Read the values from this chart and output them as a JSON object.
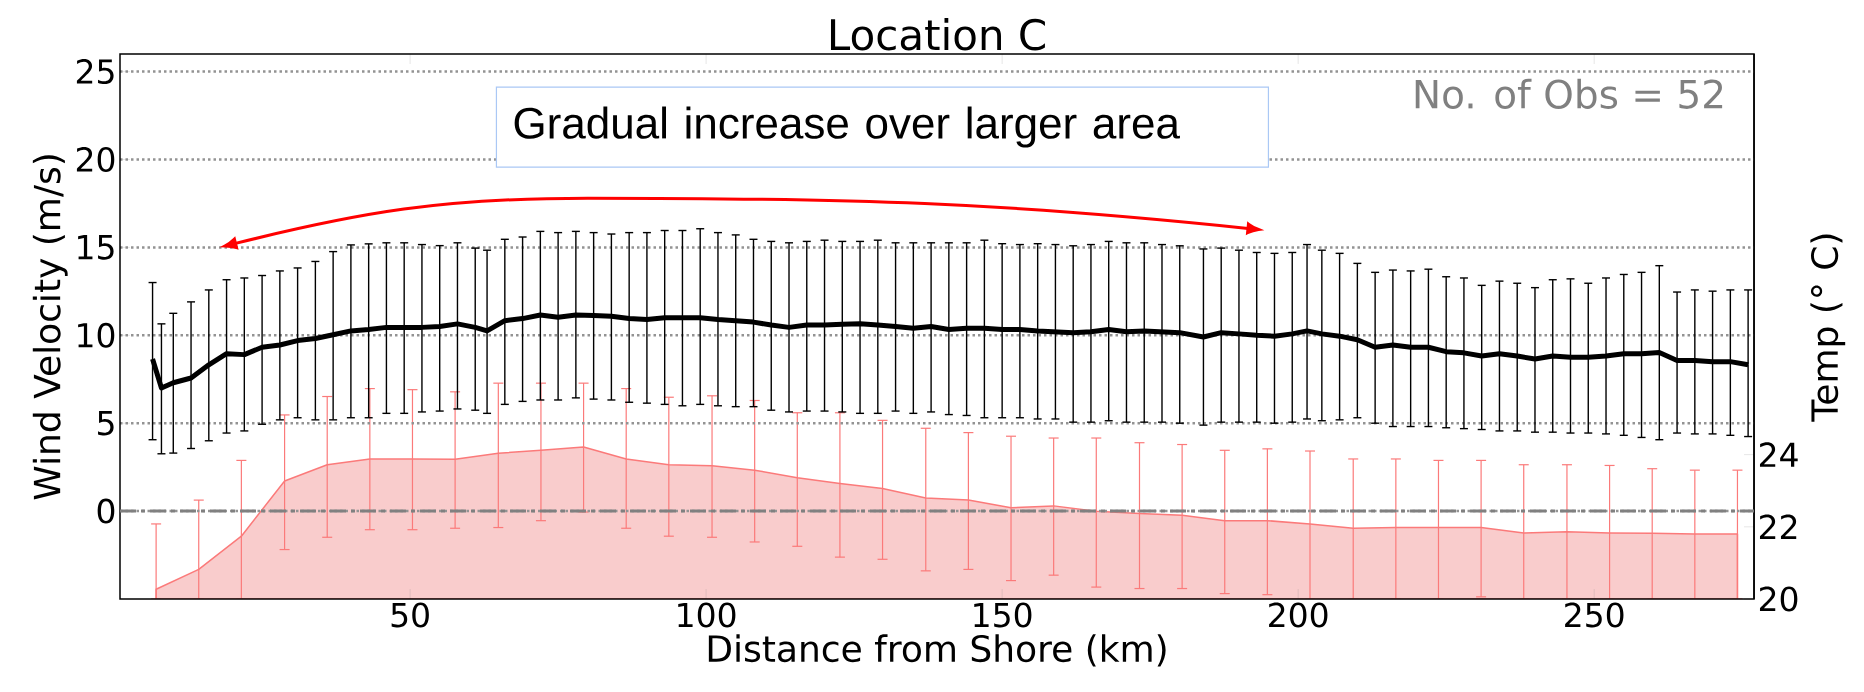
{
  "chart_data": {
    "type": "line",
    "title": "Location C",
    "xlabel": "Distance from Shore (km)",
    "ylabel": "Wind Velocity (m/s)",
    "y2label": "Temp (° C)",
    "xlim": [
      1,
      277
    ],
    "xticks": [
      50,
      100,
      150,
      200,
      250
    ],
    "ylim": [
      -5,
      26
    ],
    "yticks": [
      0,
      5,
      10,
      15,
      20,
      25
    ],
    "y2lim": [
      20,
      35.1
    ],
    "y2ticks": [
      20,
      22,
      24
    ],
    "grid": "y",
    "ref_lines": [
      {
        "axis": "y",
        "value": 0,
        "color": "#808080",
        "line_style": "dashdot"
      }
    ],
    "annotations": [
      "No. of Obs = 52",
      "Gradual increase over larger area"
    ],
    "series": [
      {
        "color": "#000000",
        "x": [
          6.5,
          8,
          10,
          13,
          16,
          19,
          22,
          25,
          28,
          31,
          34,
          37,
          40,
          43,
          46,
          49,
          52,
          55,
          58,
          61,
          63,
          66,
          69,
          72,
          75,
          78,
          81,
          84,
          87,
          90,
          93,
          96,
          99,
          102,
          105,
          108,
          111,
          114,
          117,
          120,
          123,
          126,
          129,
          132,
          135,
          138,
          141,
          144,
          147,
          150,
          153,
          156,
          159,
          162,
          165,
          168,
          171,
          174,
          177,
          180,
          184,
          187,
          190,
          193,
          196,
          199,
          201.5,
          204,
          207,
          210,
          213,
          216,
          219,
          222,
          225,
          228,
          231,
          234,
          237,
          240,
          243,
          246,
          249,
          252,
          255,
          258,
          261,
          264,
          267,
          270,
          273,
          276
        ],
        "values": [
          8.65,
          7.0,
          7.3,
          7.57,
          8.32,
          8.95,
          8.9,
          9.32,
          9.45,
          9.7,
          9.82,
          10.03,
          10.25,
          10.33,
          10.45,
          10.45,
          10.45,
          10.5,
          10.65,
          10.45,
          10.25,
          10.83,
          10.95,
          11.15,
          11.03,
          11.15,
          11.13,
          11.08,
          10.95,
          10.9,
          11.0,
          11.0,
          11.0,
          10.9,
          10.83,
          10.75,
          10.58,
          10.45,
          10.58,
          10.58,
          10.63,
          10.65,
          10.58,
          10.5,
          10.4,
          10.5,
          10.33,
          10.4,
          10.4,
          10.33,
          10.33,
          10.25,
          10.2,
          10.15,
          10.2,
          10.33,
          10.2,
          10.25,
          10.2,
          10.15,
          9.9,
          10.15,
          10.08,
          10.0,
          9.95,
          10.08,
          10.25,
          10.08,
          9.95,
          9.75,
          9.32,
          9.45,
          9.32,
          9.32,
          9.07,
          9.0,
          8.82,
          8.95,
          8.82,
          8.65,
          8.82,
          8.75,
          8.75,
          8.82,
          8.95,
          8.95,
          9.02,
          8.57,
          8.57,
          8.5,
          8.5,
          8.32
        ],
        "errors": [
          [
            4.06,
            13.0
          ],
          [
            3.26,
            10.65
          ],
          [
            3.3,
            11.25
          ],
          [
            3.56,
            11.9
          ],
          [
            4.0,
            12.58
          ],
          [
            4.44,
            13.16
          ],
          [
            4.56,
            13.26
          ],
          [
            4.94,
            13.4
          ],
          [
            5.19,
            13.66
          ],
          [
            5.31,
            13.83
          ],
          [
            5.19,
            14.2
          ],
          [
            5.19,
            14.76
          ],
          [
            5.31,
            15.14
          ],
          [
            5.31,
            15.2
          ],
          [
            5.56,
            15.26
          ],
          [
            5.56,
            15.26
          ],
          [
            5.64,
            15.16
          ],
          [
            5.69,
            15.1
          ],
          [
            5.81,
            15.26
          ],
          [
            5.74,
            14.96
          ],
          [
            5.56,
            14.84
          ],
          [
            6.07,
            15.46
          ],
          [
            6.24,
            15.59
          ],
          [
            6.32,
            15.91
          ],
          [
            6.32,
            15.84
          ],
          [
            6.44,
            15.91
          ],
          [
            6.37,
            15.84
          ],
          [
            6.32,
            15.76
          ],
          [
            6.19,
            15.84
          ],
          [
            6.14,
            15.84
          ],
          [
            6.07,
            15.96
          ],
          [
            5.99,
            15.96
          ],
          [
            6.07,
            16.06
          ],
          [
            5.99,
            15.84
          ],
          [
            5.94,
            15.71
          ],
          [
            5.94,
            15.46
          ],
          [
            5.74,
            15.34
          ],
          [
            5.64,
            15.26
          ],
          [
            5.69,
            15.34
          ],
          [
            5.69,
            15.41
          ],
          [
            5.64,
            15.34
          ],
          [
            5.56,
            15.34
          ],
          [
            5.56,
            15.41
          ],
          [
            5.69,
            15.26
          ],
          [
            5.56,
            15.26
          ],
          [
            5.64,
            15.26
          ],
          [
            5.49,
            15.26
          ],
          [
            5.44,
            15.26
          ],
          [
            5.31,
            15.41
          ],
          [
            5.31,
            15.21
          ],
          [
            5.31,
            15.16
          ],
          [
            5.24,
            15.21
          ],
          [
            5.24,
            15.16
          ],
          [
            5.06,
            15.09
          ],
          [
            5.06,
            15.16
          ],
          [
            5.14,
            15.34
          ],
          [
            5.06,
            15.26
          ],
          [
            5.06,
            15.26
          ],
          [
            5.06,
            15.16
          ],
          [
            5.0,
            15.09
          ],
          [
            4.89,
            14.91
          ],
          [
            5.06,
            14.96
          ],
          [
            5.06,
            14.84
          ],
          [
            5.06,
            14.71
          ],
          [
            5.0,
            14.66
          ],
          [
            5.06,
            14.71
          ],
          [
            5.24,
            15.16
          ],
          [
            5.14,
            14.84
          ],
          [
            5.19,
            14.66
          ],
          [
            5.31,
            14.09
          ],
          [
            5.0,
            13.58
          ],
          [
            4.81,
            13.71
          ],
          [
            4.81,
            13.66
          ],
          [
            4.81,
            13.76
          ],
          [
            4.74,
            13.33
          ],
          [
            4.69,
            13.26
          ],
          [
            4.64,
            12.84
          ],
          [
            4.56,
            13.08
          ],
          [
            4.56,
            12.96
          ],
          [
            4.49,
            12.71
          ],
          [
            4.49,
            13.16
          ],
          [
            4.44,
            13.21
          ],
          [
            4.44,
            12.96
          ],
          [
            4.39,
            13.26
          ],
          [
            4.31,
            13.46
          ],
          [
            4.19,
            13.58
          ],
          [
            4.06,
            13.96
          ],
          [
            4.44,
            12.46
          ],
          [
            4.39,
            12.58
          ],
          [
            4.39,
            12.51
          ],
          [
            4.31,
            12.58
          ],
          [
            4.24,
            12.58
          ]
        ]
      },
      {
        "type": "area",
        "axis": "y2",
        "color": "#f9cccc",
        "x": [
          7.1,
          14.3,
          21.5,
          28.8,
          36.0,
          43.2,
          50.4,
          57.6,
          64.9,
          72.1,
          79.3,
          86.5,
          93.7,
          101.0,
          108.2,
          115.4,
          122.6,
          129.8,
          137.1,
          144.3,
          151.5,
          158.7,
          165.9,
          173.2,
          180.4,
          187.6,
          194.8,
          202.0,
          209.3,
          216.5,
          223.7,
          230.9,
          238.1,
          245.4,
          252.6,
          259.8,
          267.0,
          274.2
        ],
        "values": [
          20.27,
          20.82,
          21.74,
          23.27,
          23.72,
          23.88,
          23.88,
          23.87,
          24.04,
          24.12,
          24.21,
          23.88,
          23.72,
          23.69,
          23.57,
          23.36,
          23.2,
          23.06,
          22.8,
          22.74,
          22.53,
          22.58,
          22.43,
          22.37,
          22.32,
          22.17,
          22.17,
          22.08,
          21.96,
          21.98,
          21.98,
          21.98,
          21.83,
          21.86,
          21.83,
          21.82,
          21.8,
          21.8
        ],
        "errors": [
          [
            20.0,
            22.08
          ],
          [
            20.0,
            22.74
          ],
          [
            20.0,
            23.84
          ],
          [
            21.37,
            25.1
          ],
          [
            21.71,
            25.61
          ],
          [
            21.92,
            25.83
          ],
          [
            21.92,
            25.8
          ],
          [
            21.96,
            25.74
          ],
          [
            21.98,
            25.98
          ],
          [
            22.17,
            25.98
          ],
          [
            22.41,
            25.98
          ],
          [
            21.96,
            25.83
          ],
          [
            21.74,
            25.59
          ],
          [
            21.71,
            25.63
          ],
          [
            21.58,
            25.5
          ],
          [
            21.46,
            25.16
          ],
          [
            21.16,
            25.16
          ],
          [
            21.1,
            24.95
          ],
          [
            20.78,
            24.73
          ],
          [
            20.82,
            24.61
          ],
          [
            20.51,
            24.51
          ],
          [
            20.66,
            24.46
          ],
          [
            20.33,
            24.46
          ],
          [
            20.29,
            24.33
          ],
          [
            20.29,
            24.28
          ],
          [
            20.15,
            24.12
          ],
          [
            20.12,
            24.16
          ],
          [
            20.0,
            24.1
          ],
          [
            20.0,
            23.88
          ],
          [
            20.0,
            23.88
          ],
          [
            20.0,
            23.84
          ],
          [
            20.06,
            23.84
          ],
          [
            20.0,
            23.72
          ],
          [
            20.0,
            23.72
          ],
          [
            20.0,
            23.7
          ],
          [
            20.0,
            23.61
          ],
          [
            20.0,
            23.57
          ],
          [
            20.0,
            23.57
          ]
        ]
      }
    ]
  }
}
